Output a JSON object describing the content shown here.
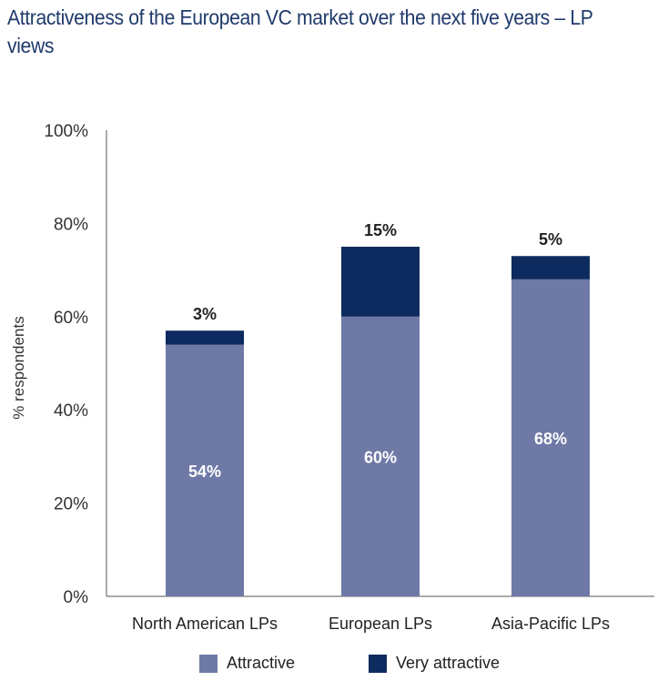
{
  "title": "Attractiveness of the European VC market over the next five years – LP views",
  "chart_data": {
    "type": "bar",
    "stacked": true,
    "title": "Attractiveness of the European VC market over the next five years – LP views",
    "xlabel": "",
    "ylabel": "% respondents",
    "ylim": [
      0,
      100
    ],
    "yticks": [
      "0%",
      "20%",
      "40%",
      "60%",
      "80%",
      "100%"
    ],
    "categories": [
      "North American LPs",
      "European LPs",
      "Asia-Pacific LPs"
    ],
    "series": [
      {
        "name": "Attractive",
        "values": [
          54,
          60,
          68
        ],
        "labels": [
          "54%",
          "60%",
          "68%"
        ],
        "color": "#6e79a6"
      },
      {
        "name": "Very attractive",
        "values": [
          3,
          15,
          5
        ],
        "labels": [
          "3%",
          "15%",
          "5%"
        ],
        "color": "#0d2b5e"
      }
    ],
    "grid": false,
    "legend": "bottom"
  }
}
